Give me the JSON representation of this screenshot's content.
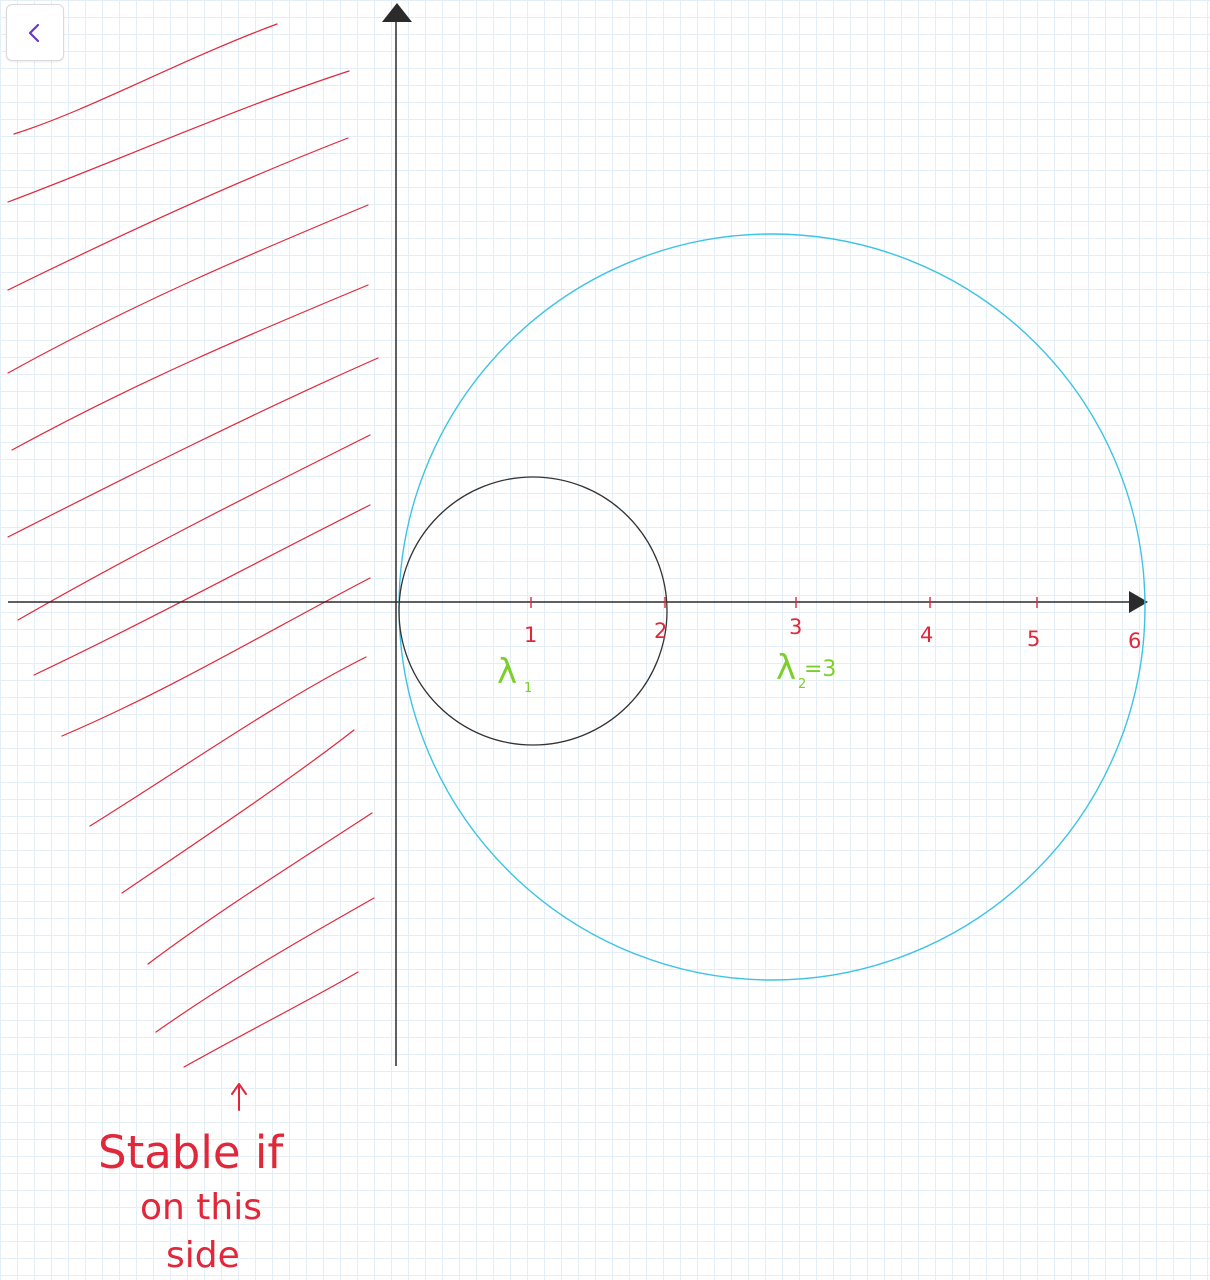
{
  "toolbar": {
    "back_icon": "chevron-left-icon"
  },
  "colors": {
    "axis": "#2b2b2b",
    "hatch": "#e0283a",
    "tick": "#e0283a",
    "small_circle": "#333333",
    "large_circle": "#3ec3e6",
    "eigen_label": "#7ccf2b",
    "note": "#e0283a"
  },
  "axis": {
    "ticks": [
      "1",
      "2",
      "3",
      "4",
      "5",
      "6"
    ]
  },
  "eigen_labels": {
    "lambda1": {
      "symbol": "λ",
      "subscript": "1",
      "suffix": ""
    },
    "lambda2": {
      "symbol": "λ",
      "subscript": "2",
      "suffix": "=3"
    }
  },
  "note": {
    "arrow_icon": "up-arrow-icon",
    "line1": "Stable if",
    "line2": "on this",
    "line3": "side"
  }
}
